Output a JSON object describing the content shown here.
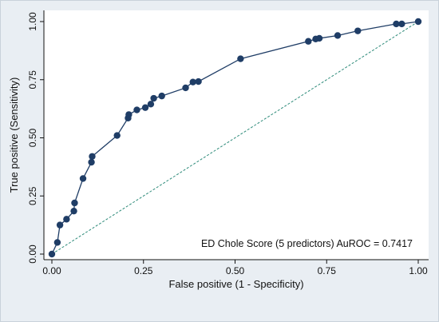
{
  "chart_data": {
    "type": "line",
    "title": "",
    "xlabel": "False positive (1 - Specificity)",
    "ylabel": "True positive (Sensitivity)",
    "xlim": [
      0,
      1
    ],
    "ylim": [
      0,
      1
    ],
    "xticks": [
      "0.00",
      "0.25",
      "0.50",
      "0.75",
      "1.00"
    ],
    "yticks": [
      "0.00",
      "0.25",
      "0.50",
      "0.75",
      "1.00"
    ],
    "grid": false,
    "annotation": "ED Chole Score (5 predictors) AuROC = 0.7417",
    "colors": {
      "roc": "#1f3d66",
      "reference": "#2e8b7a",
      "plot_bg": "#ffffff"
    },
    "series": [
      {
        "x": [
          0.0,
          0.015,
          0.022,
          0.04,
          0.06,
          0.062,
          0.085,
          0.108,
          0.11,
          0.178,
          0.208,
          0.21,
          0.232,
          0.255,
          0.27,
          0.278,
          0.3,
          0.365,
          0.385,
          0.4,
          0.515,
          0.7,
          0.72,
          0.73,
          0.78,
          0.835,
          0.94,
          0.955,
          1.0
        ],
        "y": [
          0.0,
          0.05,
          0.125,
          0.15,
          0.185,
          0.22,
          0.325,
          0.395,
          0.42,
          0.51,
          0.585,
          0.6,
          0.62,
          0.63,
          0.645,
          0.67,
          0.68,
          0.715,
          0.74,
          0.742,
          0.84,
          0.915,
          0.925,
          0.928,
          0.94,
          0.96,
          0.99,
          0.99,
          1.0
        ]
      },
      {
        "x": [
          0,
          1
        ],
        "y": [
          0,
          1
        ]
      }
    ]
  }
}
